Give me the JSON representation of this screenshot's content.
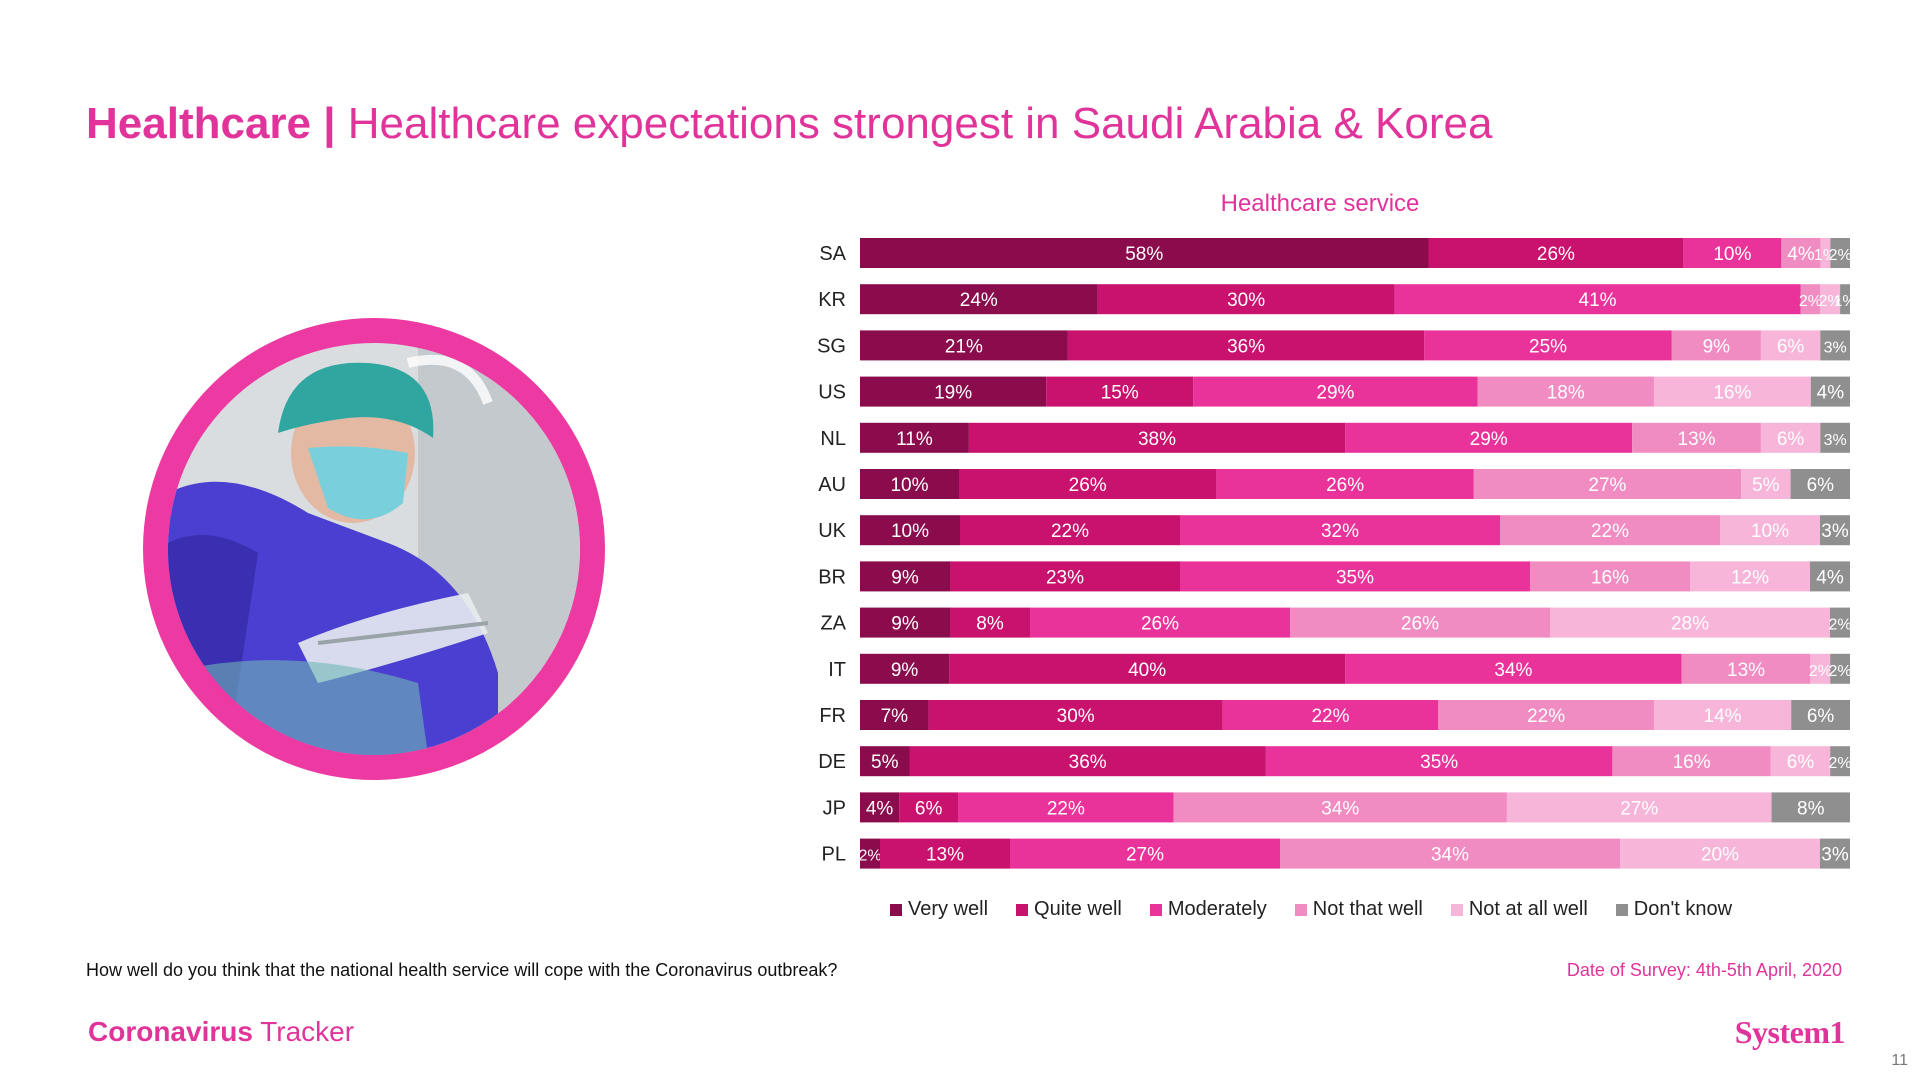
{
  "header": {
    "title_bold": "Healthcare |",
    "title_rest": "Healthcare expectations strongest in Saudi Arabia & Korea"
  },
  "photo": {
    "icon": "surgeon-photo"
  },
  "chart_data": {
    "type": "bar",
    "orientation": "horizontal",
    "stacked": true,
    "title": "Healthcare service",
    "categories": [
      "SA",
      "KR",
      "SG",
      "US",
      "NL",
      "AU",
      "UK",
      "BR",
      "ZA",
      "IT",
      "FR",
      "DE",
      "JP",
      "PL"
    ],
    "series": [
      {
        "name": "Very well",
        "color": "#8b0c4d",
        "values": [
          58,
          24,
          21,
          19,
          11,
          10,
          10,
          9,
          9,
          9,
          7,
          5,
          4,
          2
        ],
        "labels": [
          "58%",
          "24%",
          "21%",
          "19%",
          "11%",
          "10%",
          "10%",
          "9%",
          "9%",
          "9%",
          "7%",
          "5%",
          "4%",
          "2%"
        ]
      },
      {
        "name": "Quite well",
        "color": "#c8126e",
        "values": [
          26,
          30,
          36,
          15,
          38,
          26,
          22,
          23,
          8,
          40,
          30,
          36,
          6,
          13
        ],
        "labels": [
          "26%",
          "30%",
          "36%",
          "15%",
          "38%",
          "26%",
          "22%",
          "23%",
          "8%",
          "40%",
          "30%",
          "36%",
          "6%",
          "13%"
        ]
      },
      {
        "name": "Moderately",
        "color": "#e9339b",
        "values": [
          10,
          41,
          25,
          29,
          29,
          26,
          32,
          35,
          26,
          34,
          22,
          35,
          22,
          27
        ],
        "labels": [
          "10%",
          "41%",
          "25%",
          "29%",
          "29%",
          "26%",
          "32%",
          "35%",
          "26%",
          "34%",
          "22%",
          "35%",
          "22%",
          "27%"
        ]
      },
      {
        "name": "Not that well",
        "color": "#f18cc3",
        "values": [
          4,
          2,
          9,
          18,
          13,
          27,
          22,
          16,
          26,
          13,
          22,
          16,
          34,
          34
        ],
        "labels": [
          "4%",
          "2%",
          "9%",
          "18%",
          "13%",
          "27%",
          "22%",
          "16%",
          "26%",
          "13%",
          "22%",
          "16%",
          "34%",
          "34%"
        ]
      },
      {
        "name": "Not at all well",
        "color": "#f7b6d9",
        "values": [
          1,
          2,
          6,
          16,
          6,
          5,
          10,
          12,
          28,
          2,
          14,
          6,
          27,
          20
        ],
        "labels": [
          "1%",
          "2%",
          "6%",
          "16%",
          "6%",
          "5%",
          "10%",
          "12%",
          "28%",
          "2%",
          "14%",
          "6%",
          "27%",
          "20%"
        ]
      },
      {
        "name": "Don't know",
        "color": "#8f8f8f",
        "values": [
          2,
          1,
          3,
          4,
          3,
          6,
          3,
          4,
          2,
          2,
          6,
          2,
          8,
          3
        ],
        "labels": [
          "2%",
          "1%",
          "3%",
          "4%",
          "3%",
          "6%",
          "3%",
          "4%",
          "2%",
          "2%",
          "6%",
          "2%",
          "8%",
          "3%"
        ]
      }
    ],
    "xlim": [
      0,
      100
    ],
    "legend": "bottom"
  },
  "footer": {
    "question": "How well do you think that the national health service will cope with the Coronavirus outbreak?",
    "date": "Date of Survey: 4th-5th April, 2020",
    "brand_bold": "Coronavirus",
    "brand_rest": " Tracker",
    "logo": "System1",
    "page_number": "11"
  }
}
